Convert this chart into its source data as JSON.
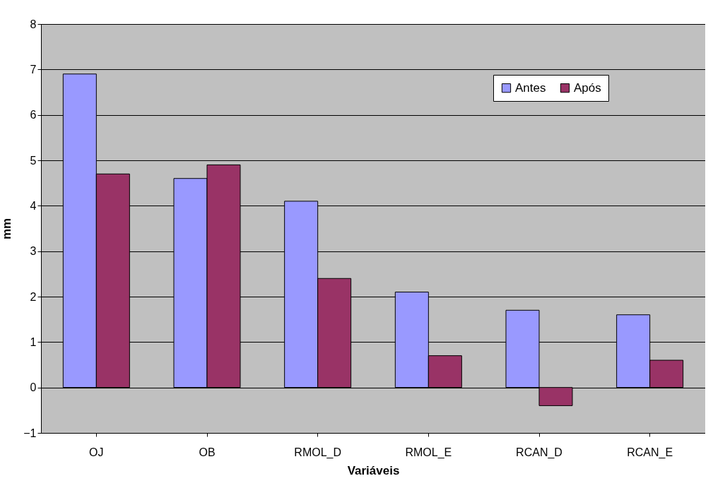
{
  "chart_data": {
    "type": "bar",
    "xlabel": "Variáveis",
    "ylabel": "mm",
    "categories": [
      "OJ",
      "OB",
      "RMOL_D",
      "RMOL_E",
      "RCAN_D",
      "RCAN_E"
    ],
    "series": [
      {
        "name": "Antes",
        "color": "#9999ff",
        "values": [
          6.9,
          4.6,
          4.1,
          2.1,
          1.7,
          1.6
        ]
      },
      {
        "name": "Após",
        "color": "#993366",
        "values": [
          4.7,
          4.9,
          2.4,
          0.7,
          -0.4,
          0.6
        ]
      }
    ],
    "ylim": [
      -1,
      8
    ],
    "yticks": [
      -1,
      0,
      1,
      2,
      3,
      4,
      5,
      6,
      7,
      8
    ],
    "grid": "y",
    "legend": "top right"
  }
}
